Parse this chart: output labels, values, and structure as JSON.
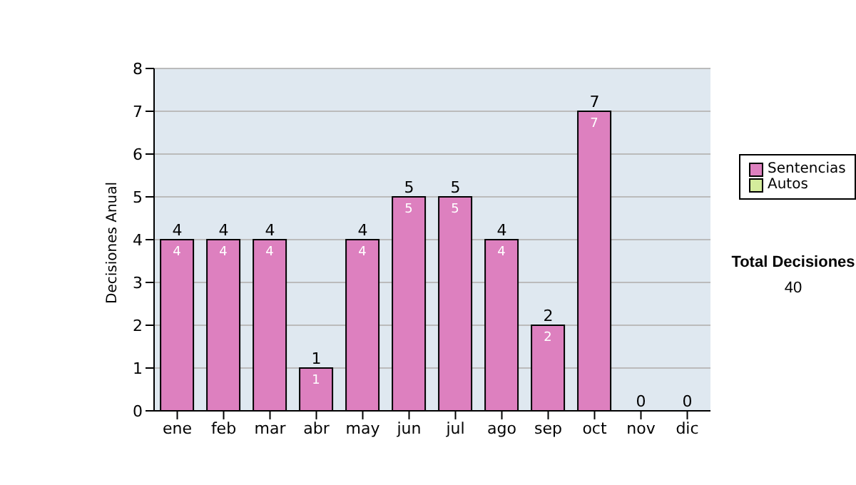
{
  "chart_data": {
    "type": "bar",
    "stacked": true,
    "ylabel": "Decisiones Anual",
    "categories": [
      "ene",
      "feb",
      "mar",
      "abr",
      "may",
      "jun",
      "jul",
      "ago",
      "sep",
      "oct",
      "nov",
      "dic"
    ],
    "series": [
      {
        "name": "Sentencias",
        "color": "#dd80bf",
        "values": [
          4,
          4,
          4,
          1,
          4,
          5,
          5,
          4,
          2,
          7,
          0,
          0
        ],
        "value_labels": [
          "4",
          "4",
          "4",
          "1",
          "4",
          "5",
          "5",
          "4",
          "2",
          "7",
          null,
          null
        ]
      },
      {
        "name": "Autos",
        "color": "#d4ec9c",
        "values": [
          0,
          0,
          0,
          0,
          0,
          0,
          0,
          0,
          0,
          0,
          0,
          0
        ]
      }
    ],
    "totals": [
      "4",
      "4",
      "4",
      "1",
      "4",
      "5",
      "5",
      "4",
      "2",
      "7",
      "0",
      "0"
    ],
    "ylim": [
      0,
      8
    ],
    "yticks": [
      0,
      1,
      2,
      3,
      4,
      5,
      6,
      7,
      8
    ],
    "grid": "y",
    "legend": "right",
    "annotations": [
      "Total Decisiones",
      "40"
    ]
  }
}
